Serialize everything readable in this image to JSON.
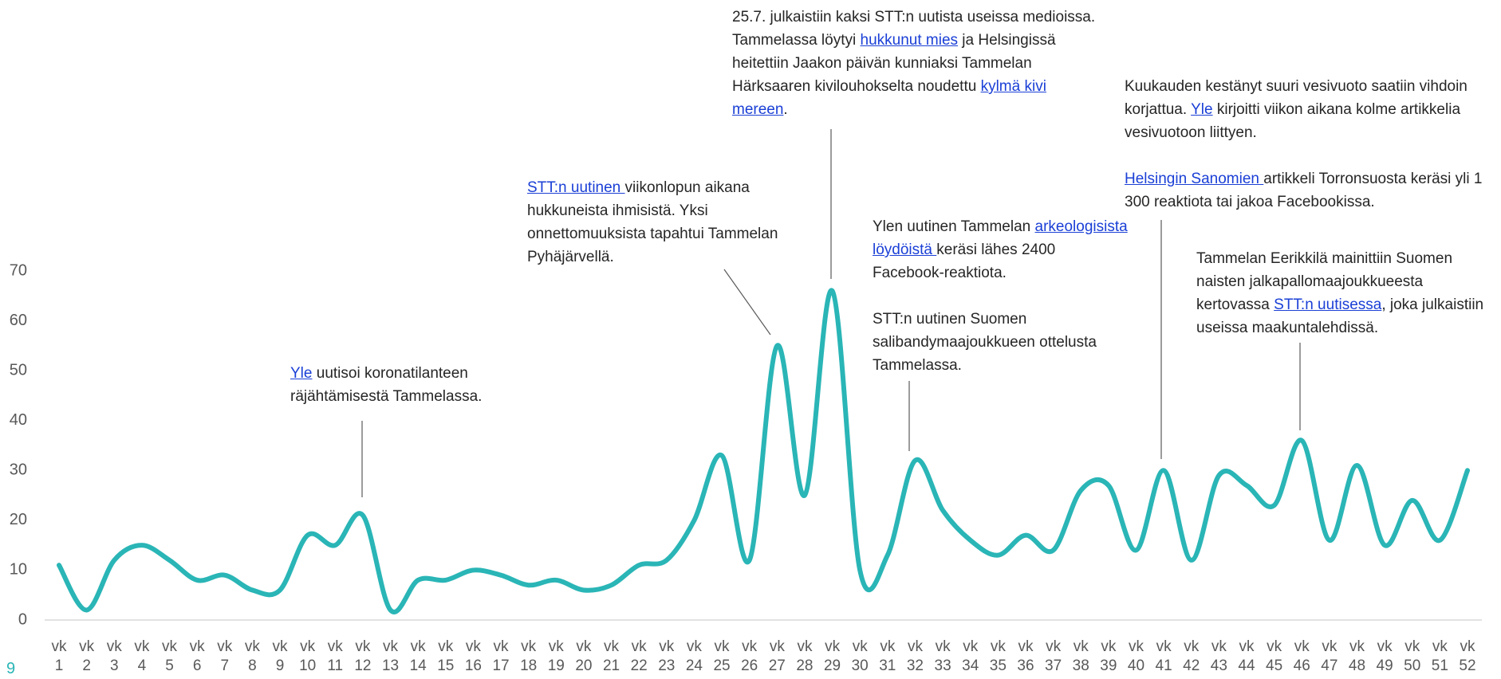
{
  "chart_data": {
    "type": "line",
    "categories": [
      "vk 1",
      "vk 2",
      "vk 3",
      "vk 4",
      "vk 5",
      "vk 6",
      "vk 7",
      "vk 8",
      "vk 9",
      "vk 10",
      "vk 11",
      "vk 12",
      "vk 13",
      "vk 14",
      "vk 15",
      "vk 16",
      "vk 17",
      "vk 18",
      "vk 19",
      "vk 20",
      "vk 21",
      "vk 22",
      "vk 23",
      "vk 24",
      "vk 25",
      "vk 26",
      "vk 27",
      "vk 28",
      "vk 29",
      "vk 30",
      "vk 31",
      "vk 32",
      "vk 33",
      "vk 34",
      "vk 35",
      "vk 36",
      "vk 37",
      "vk 38",
      "vk 39",
      "vk 40",
      "vk 41",
      "vk 42",
      "vk 43",
      "vk 44",
      "vk 45",
      "vk 46",
      "vk 47",
      "vk 48",
      "vk 49",
      "vk 50",
      "vk 51",
      "vk 52"
    ],
    "values": [
      11,
      2,
      12,
      15,
      12,
      8,
      9,
      6,
      6,
      17,
      15,
      21,
      2,
      8,
      8,
      10,
      9,
      7,
      8,
      6,
      7,
      11,
      12,
      20,
      33,
      12,
      55,
      25,
      66,
      10,
      13,
      32,
      22,
      16,
      13,
      17,
      14,
      26,
      27,
      14,
      30,
      12,
      29,
      27,
      23,
      36,
      16,
      31,
      15,
      24,
      16,
      30
    ],
    "color": "#2ab5b6",
    "ylim": [
      0,
      70
    ],
    "yticks": [
      0,
      10,
      20,
      30,
      40,
      50,
      60,
      70
    ],
    "grid": false,
    "annotations": [
      {
        "week": "vk 12",
        "paragraphs": [
          [
            {
              "text": "Yle",
              "link": true
            },
            {
              "text": " uutisoi koronatilanteen räjähtämisestä Tammelassa."
            }
          ]
        ]
      },
      {
        "week": "vk 27",
        "paragraphs": [
          [
            {
              "text": "STT:n uutinen ",
              "link": true
            },
            {
              "text": "viikonlopun aikana hukkuneista ihmisistä. Yksi onnettomuuksista tapahtui Tammelan Pyhäjärvellä."
            }
          ]
        ]
      },
      {
        "week": "vk 29",
        "paragraphs": [
          [
            {
              "text": "25.7. julkaistiin kaksi STT:n uutista useissa medioissa. Tammelassa löytyi "
            },
            {
              "text": "hukkunut mies",
              "link": true
            },
            {
              "text": " ja Helsingissä heitettiin Jaakon päivän kunniaksi Tammelan Härksaaren kivilouhokselta noudettu "
            },
            {
              "text": "kylmä kivi mereen",
              "link": true
            },
            {
              "text": "."
            }
          ]
        ]
      },
      {
        "week": "vk 32",
        "paragraphs": [
          [
            {
              "text": "Ylen uutinen Tammelan "
            },
            {
              "text": "arkeologisista löydöistä ",
              "link": true
            },
            {
              "text": "keräsi lähes 2400 Facebook-reaktiota."
            }
          ],
          [
            {
              "text": "STT:n uutinen Suomen salibandymaajoukkueen ottelusta Tammelassa."
            }
          ]
        ]
      },
      {
        "week": "vk 41",
        "paragraphs": [
          [
            {
              "text": "Kuukauden kestänyt suuri vesivuoto saatiin vihdoin korjattua. "
            },
            {
              "text": "Yle",
              "link": true
            },
            {
              "text": " kirjoitti viikon aikana kolme artikkelia vesivuotoon liittyen."
            }
          ],
          [
            {
              "text": "Helsingin Sanomien ",
              "link": true
            },
            {
              "text": "artikkeli Torronsuosta keräsi yli 1 300 reaktiota tai jakoa Facebookissa."
            }
          ]
        ]
      },
      {
        "week": "vk 46",
        "paragraphs": [
          [
            {
              "text": "Tammelan Eerikkilä mainittiin Suomen naisten jalkapallomaajoukkueesta kertovassa "
            },
            {
              "text": "STT:n uutisessa",
              "link": true
            },
            {
              "text": ", joka julkaistiin useissa maakuntalehdissä."
            }
          ]
        ]
      }
    ]
  },
  "page_number": "9"
}
